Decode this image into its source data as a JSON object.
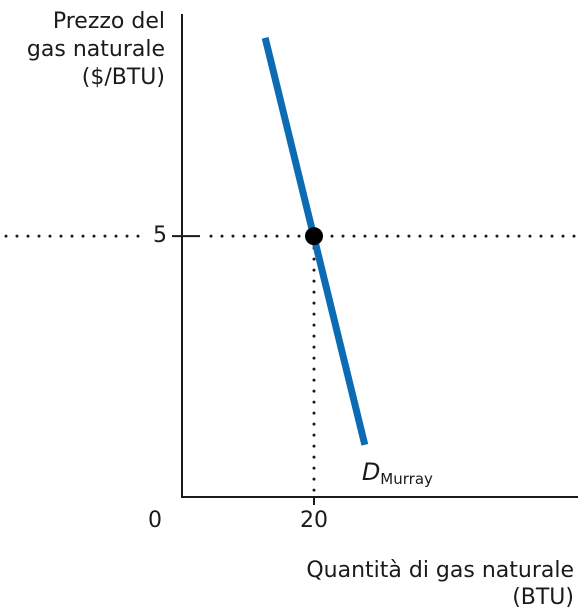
{
  "chart_data": {
    "type": "line",
    "y_label": [
      "Prezzo del",
      "gas naturale",
      "($/BTU)"
    ],
    "x_label": [
      "Quantità di gas naturale",
      "(BTU)"
    ],
    "series": [
      {
        "name": "D",
        "name_sub": "Murray",
        "color": "#0b6cb4",
        "x": [
          12.6,
          27.7
        ],
        "values": [
          8.8,
          1.0
        ]
      }
    ],
    "point": {
      "x": 20,
      "y": 5,
      "color": "#000000"
    },
    "xlim": [
      0,
      60
    ],
    "ylim": [
      0,
      9.2
    ],
    "xticks": [
      0,
      20
    ],
    "yticks": [
      5
    ]
  }
}
